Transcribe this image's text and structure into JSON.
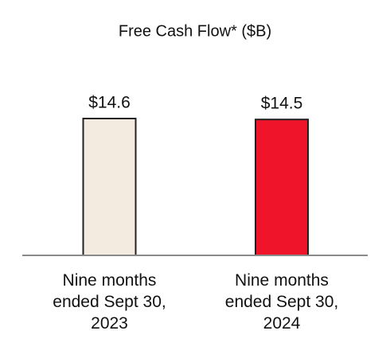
{
  "chart_data": {
    "type": "bar",
    "title": "Free Cash Flow* ($B)",
    "categories": [
      "Nine months ended Sept 30, 2023",
      "Nine months ended Sept 30, 2024"
    ],
    "values": [
      14.6,
      14.5
    ],
    "value_labels": [
      "$14.6",
      "$14.5"
    ],
    "colors": [
      "#f3ebdf",
      "#f0142a"
    ]
  }
}
